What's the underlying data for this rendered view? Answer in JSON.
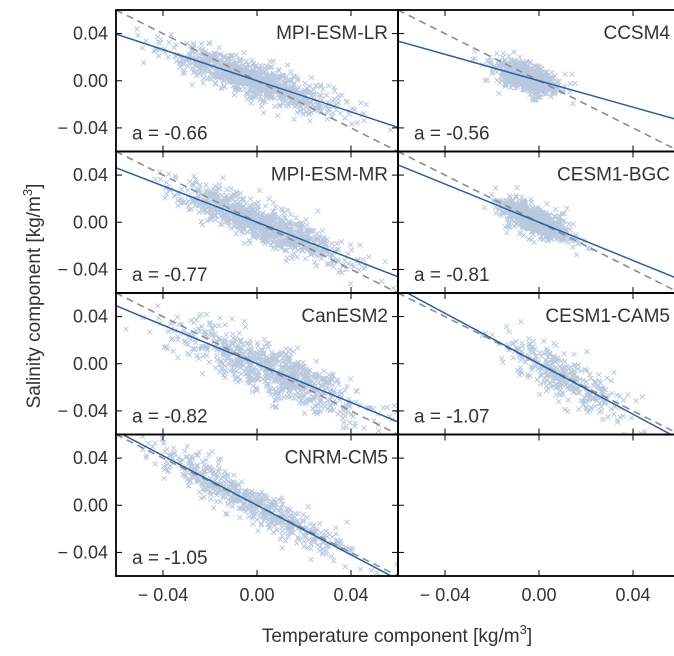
{
  "chart_data": {
    "type": "scatter",
    "xlabel": {
      "text": "Temperature component [kg/m",
      "sup": "3",
      "close": "]"
    },
    "ylabel": {
      "text": "Salinity component [kg/m",
      "sup": "3",
      "close": "]"
    },
    "xlim": [
      -0.06,
      0.06
    ],
    "ylim": [
      -0.06,
      0.06
    ],
    "xticks": [
      -0.04,
      0.0,
      0.04
    ],
    "yticks": [
      -0.04,
      0.0,
      0.04
    ],
    "xtick_labels": [
      "− 0.04",
      "0.00",
      "0.04"
    ],
    "ytick_labels": [
      "− 0.04",
      "0.00",
      "0.04"
    ],
    "grid": false,
    "colors": {
      "points": "#3465a4",
      "fit_line": "#2e5f9e",
      "reference_line": "#8c8c8c",
      "frame": "#000000",
      "text": "#333333"
    },
    "reference_line": {
      "slope": -1,
      "style": "dashed"
    },
    "panels": [
      {
        "title": "MPI-ESM-LR",
        "slope": -0.66,
        "slope_label": "a = -0.66",
        "x_range": [
          -0.045,
          0.04
        ],
        "n": 900,
        "spread": 0.0075
      },
      {
        "title": "CCSM4",
        "slope": -0.56,
        "slope_label": "a = -0.56",
        "x_range": [
          -0.02,
          0.01
        ],
        "n": 700,
        "spread": 0.006
      },
      {
        "title": "MPI-ESM-MR",
        "slope": -0.77,
        "slope_label": "a = -0.77",
        "x_range": [
          -0.04,
          0.045
        ],
        "n": 900,
        "spread": 0.008
      },
      {
        "title": "CESM1-BGC",
        "slope": -0.81,
        "slope_label": "a = -0.81",
        "x_range": [
          -0.018,
          0.015
        ],
        "n": 700,
        "spread": 0.006
      },
      {
        "title": "CanESM2",
        "slope": -0.82,
        "slope_label": "a = -0.82",
        "x_range": [
          -0.04,
          0.05
        ],
        "n": 800,
        "spread": 0.011
      },
      {
        "title": "CESM1-CAM5",
        "slope": -1.07,
        "slope_label": "a = -1.07",
        "x_range": [
          -0.02,
          0.04
        ],
        "n": 350,
        "spread": 0.01
      },
      {
        "title": "CNRM-CM5",
        "slope": -1.05,
        "slope_label": "a = -1.05",
        "x_range": [
          -0.05,
          0.045
        ],
        "n": 600,
        "spread": 0.008
      }
    ]
  }
}
